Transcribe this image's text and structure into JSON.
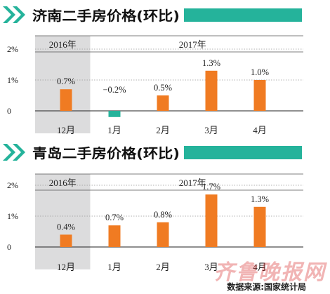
{
  "colors": {
    "accent": "#25b39b",
    "bar": "#f07b22",
    "negative_bar": "#25b39b",
    "shade": "#dcdcdd",
    "axis": "#333333"
  },
  "source_text": "数据来源:国家统计局",
  "watermark_text": "齐鲁晚报网",
  "chart_data": [
    {
      "type": "bar",
      "title": "济南二手房价格(环比)",
      "categories": [
        "12月",
        "1月",
        "2月",
        "3月",
        "4月"
      ],
      "values": [
        0.7,
        -0.2,
        0.5,
        1.3,
        1.0
      ],
      "value_labels": [
        "0.7%",
        "−0.2%",
        "0.5%",
        "1.3%",
        "1.0%"
      ],
      "yticks": [
        "2%",
        "1%",
        "0"
      ],
      "ylim": [
        -0.3,
        2.2
      ],
      "year_groups": [
        {
          "label": "2016年",
          "count": 1,
          "shaded": true
        },
        {
          "label": "2017年",
          "count": 4,
          "shaded": false
        }
      ],
      "grid": true
    },
    {
      "type": "bar",
      "title": "青岛二手房价格(环比)",
      "categories": [
        "12月",
        "1月",
        "2月",
        "3月",
        "4月"
      ],
      "values": [
        0.4,
        0.7,
        0.8,
        1.7,
        1.3
      ],
      "value_labels": [
        "0.4%",
        "0.7%",
        "0.8%",
        "1.7%",
        "1.3%"
      ],
      "yticks": [
        "2%",
        "1%",
        "0"
      ],
      "ylim": [
        -0.3,
        2.2
      ],
      "year_groups": [
        {
          "label": "2016年",
          "count": 1,
          "shaded": true
        },
        {
          "label": "2017年",
          "count": 4,
          "shaded": false
        }
      ],
      "grid": true
    }
  ]
}
